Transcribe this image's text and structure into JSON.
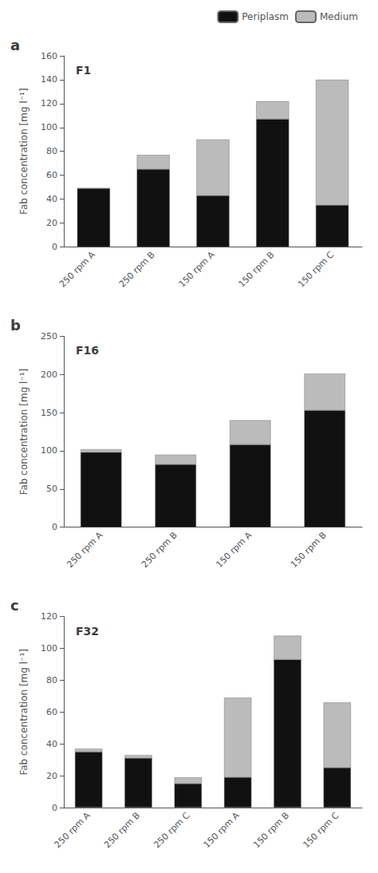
{
  "chart_data": [
    {
      "type": "bar",
      "title": "F1",
      "annotations": [
        "a"
      ],
      "categories": [
        "250 rpm A",
        "250 rpm B",
        "150 rpm A",
        "150 rpm B",
        "150 rpm C"
      ],
      "series": [
        {
          "name": "Periplasm",
          "color": "#111111",
          "values": [
            49,
            65,
            43,
            107,
            35
          ]
        },
        {
          "name": "Medium",
          "color": "#bbbbbb",
          "values": [
            0,
            12,
            47,
            15,
            105
          ]
        }
      ],
      "ylabel": "Fab concentration [mg l⁻¹]",
      "ylim": [
        0,
        160
      ],
      "yticks": [
        0,
        20,
        40,
        60,
        80,
        100,
        120,
        140,
        160
      ],
      "stacked": true,
      "grid": false,
      "legend": "upper right"
    },
    {
      "type": "bar",
      "title": "F16",
      "annotations": [
        "b"
      ],
      "categories": [
        "250 rpm A",
        "250 rpm B",
        "150 rpm A",
        "150 rpm B"
      ],
      "series": [
        {
          "name": "Periplasm",
          "color": "#111111",
          "values": [
            98,
            82,
            108,
            153
          ]
        },
        {
          "name": "Medium",
          "color": "#bbbbbb",
          "values": [
            4,
            13,
            32,
            48
          ]
        }
      ],
      "ylabel": "Fab concentration [mg l⁻¹]",
      "ylim": [
        0,
        250
      ],
      "yticks": [
        0,
        50,
        100,
        150,
        200,
        250
      ],
      "stacked": true,
      "grid": false
    },
    {
      "type": "bar",
      "title": "F32",
      "annotations": [
        "c"
      ],
      "categories": [
        "250 rpm A",
        "250 rpm B",
        "250 rpm C",
        "150 rpm A",
        "150 rpm B",
        "150 rpm C"
      ],
      "series": [
        {
          "name": "Periplasm",
          "color": "#111111",
          "values": [
            35,
            31,
            15,
            19,
            93,
            25
          ]
        },
        {
          "name": "Medium",
          "color": "#bbbbbb",
          "values": [
            2,
            2,
            4,
            50,
            15,
            41
          ]
        }
      ],
      "ylabel": "Fab concentration [mg l⁻¹]",
      "ylim": [
        0,
        120
      ],
      "yticks": [
        0,
        20,
        40,
        60,
        80,
        100,
        120
      ],
      "stacked": true,
      "grid": false
    }
  ]
}
